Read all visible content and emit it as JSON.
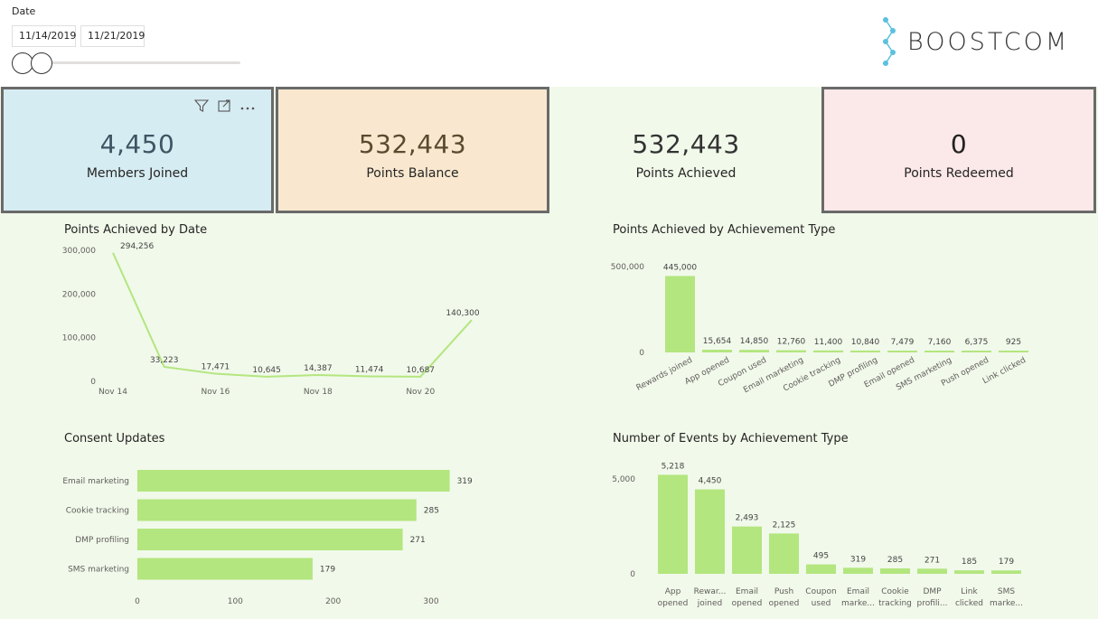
{
  "filter": {
    "label": "Date",
    "start": "11/14/2019",
    "end": "11/21/2019"
  },
  "brand": {
    "name": "BOOSTCOM",
    "accent": "#5bc0de"
  },
  "cards": {
    "members_joined": {
      "value": "4,450",
      "label": "Members Joined"
    },
    "points_balance": {
      "value": "532,443",
      "label": "Points Balance"
    },
    "points_achieved": {
      "value": "532,443",
      "label": "Points Achieved"
    },
    "points_redeemed": {
      "value": "0",
      "label": "Points Redeemed"
    }
  },
  "visual_header_icons": [
    "filter-icon",
    "focus-mode-icon",
    "more-options-icon"
  ],
  "colors": {
    "bar": "#b3e67f",
    "line": "#b3e67f",
    "canvas": "#f1f9ea"
  },
  "chart_data": [
    {
      "id": "points_by_date",
      "type": "line",
      "title": "Points Achieved by Date",
      "x": [
        "Nov 14",
        "Nov 15",
        "Nov 16",
        "Nov 17",
        "Nov 18",
        "Nov 19",
        "Nov 20",
        "Nov 21"
      ],
      "x_tick_labels": [
        "Nov 14",
        "Nov 16",
        "Nov 18",
        "Nov 20"
      ],
      "values": [
        294256,
        33223,
        17471,
        10645,
        14387,
        11474,
        10687,
        140300
      ],
      "data_labels": [
        "294,256",
        "33,223",
        "17,471",
        "10,645",
        "14,387",
        "11,474",
        "10,687",
        "140,300"
      ],
      "y_ticks": [
        "0",
        "100,000",
        "200,000",
        "300,000"
      ],
      "ylim": [
        0,
        300000
      ]
    },
    {
      "id": "points_by_type",
      "type": "bar",
      "title": "Points Achieved by Achievement Type",
      "categories": [
        "Rewards joined",
        "App opened",
        "Coupon used",
        "Email marketing",
        "Cookie tracking",
        "DMP profiling",
        "Email opened",
        "SMS marketing",
        "Push opened",
        "Link clicked"
      ],
      "values": [
        445000,
        15654,
        14850,
        12760,
        11400,
        10840,
        7479,
        7160,
        6375,
        925
      ],
      "data_labels": [
        "445,000",
        "15,654",
        "14,850",
        "12,760",
        "11,400",
        "10,840",
        "7,479",
        "7,160",
        "6,375",
        "925"
      ],
      "y_ticks": [
        "0",
        "500,000"
      ],
      "ylim": [
        0,
        500000
      ]
    },
    {
      "id": "consent_updates",
      "type": "bar",
      "orientation": "horizontal",
      "title": "Consent Updates",
      "categories": [
        "Email marketing",
        "Cookie tracking",
        "DMP profiling",
        "SMS marketing"
      ],
      "values": [
        319,
        285,
        271,
        179
      ],
      "data_labels": [
        "319",
        "285",
        "271",
        "179"
      ],
      "x_ticks": [
        "0",
        "100",
        "200",
        "300"
      ],
      "xlim": [
        0,
        300
      ]
    },
    {
      "id": "events_by_type",
      "type": "bar",
      "title": "Number of Events by Achievement Type",
      "categories": [
        "App opened",
        "Rewar... joined",
        "Email opened",
        "Push opened",
        "Coupon used",
        "Email marke...",
        "Cookie tracking",
        "DMP profili...",
        "Link clicked",
        "SMS marke..."
      ],
      "values": [
        5218,
        4450,
        2493,
        2125,
        495,
        319,
        285,
        271,
        185,
        179
      ],
      "data_labels": [
        "5,218",
        "4,450",
        "2,493",
        "2,125",
        "495",
        "319",
        "285",
        "271",
        "185",
        "179"
      ],
      "y_ticks": [
        "0",
        "5,000"
      ],
      "ylim": [
        0,
        5000
      ]
    }
  ]
}
